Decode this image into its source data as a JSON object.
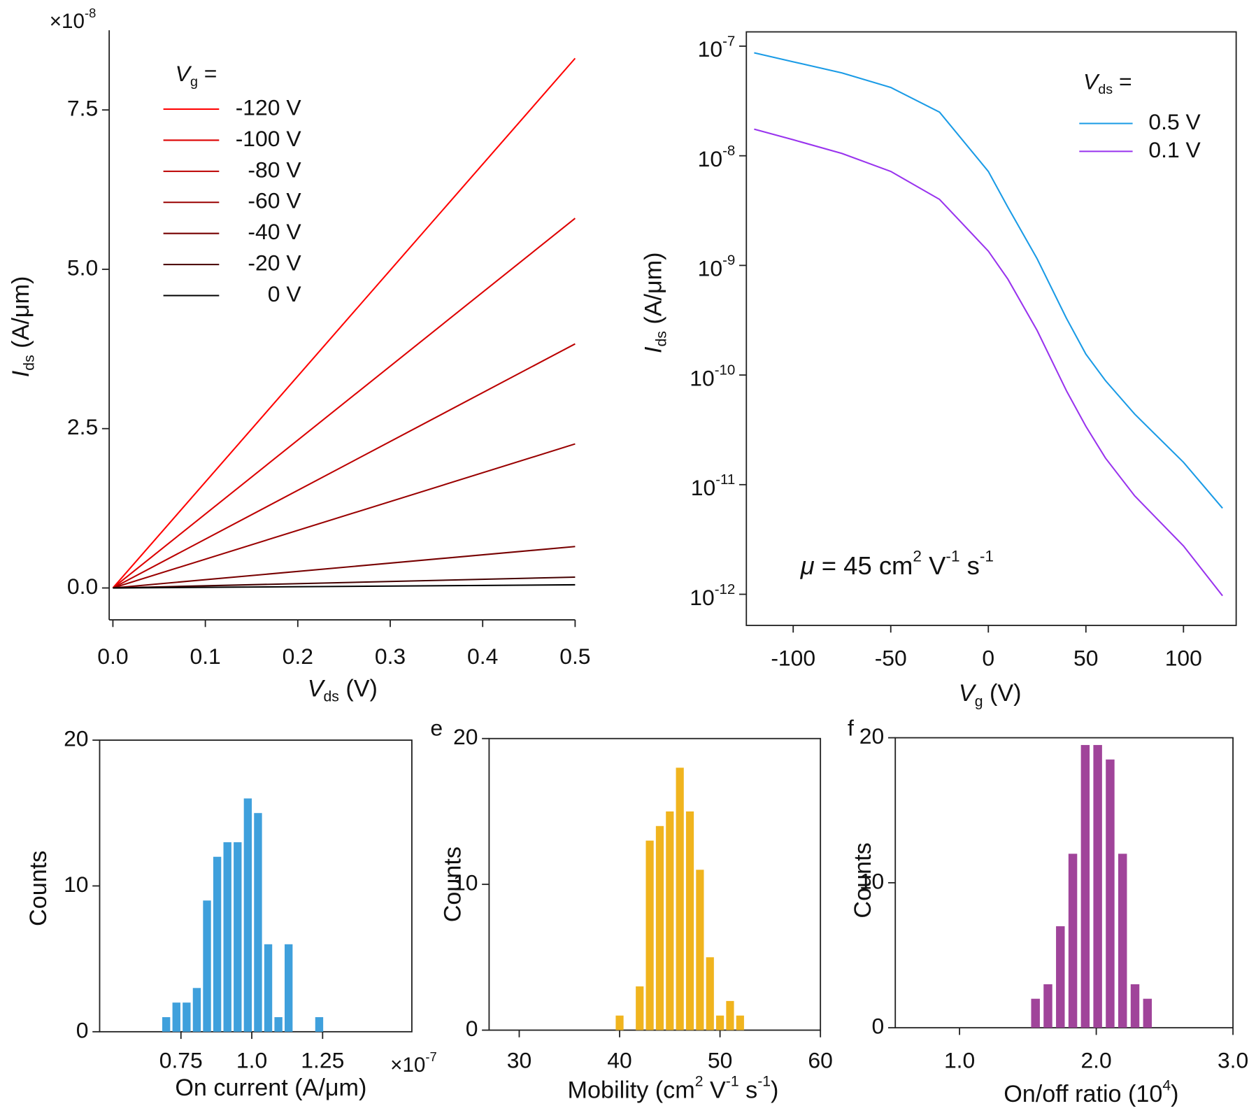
{
  "chart_data": [
    {
      "type": "line",
      "multiplier": [
        {
          "t": "×10"
        },
        {
          "t": "-8",
          "f": "sup"
        }
      ],
      "xlabel": [
        {
          "t": "V",
          "f": "i"
        },
        {
          "t": "ds",
          "f": "sub"
        },
        {
          "t": " (V)"
        }
      ],
      "ylabel": [
        {
          "t": "I",
          "f": "i"
        },
        {
          "t": "ds",
          "f": "sub"
        },
        {
          "t": " (A/μm)"
        }
      ],
      "legend_title": [
        {
          "t": "V",
          "f": "i"
        },
        {
          "t": "g",
          "f": "sub"
        },
        {
          "t": " ="
        }
      ],
      "x": [
        0,
        0.5
      ],
      "series": [
        {
          "name": "-120 V",
          "color": "#ff0000",
          "values": [
            0,
            8.31
          ]
        },
        {
          "name": "-100 V",
          "color": "#dd0000",
          "values": [
            0,
            5.8
          ]
        },
        {
          "name": "-80 V",
          "color": "#bb0000",
          "values": [
            0,
            3.83
          ]
        },
        {
          "name": "-60 V",
          "color": "#990000",
          "values": [
            0,
            2.26
          ]
        },
        {
          "name": "-40 V",
          "color": "#770000",
          "values": [
            0,
            0.65
          ]
        },
        {
          "name": "-20 V",
          "color": "#440000",
          "values": [
            0,
            0.17
          ]
        },
        {
          "name": "0 V",
          "color": "#000000",
          "values": [
            0,
            0.05
          ]
        }
      ],
      "xlim": [
        -0.004,
        0.5
      ],
      "ylim": [
        -0.5,
        8.75
      ],
      "xticks": [
        {
          "value": 0,
          "label": "0.0"
        },
        0.1,
        0.2,
        0.3,
        0.4,
        0.5
      ],
      "yticks": [
        {
          "value": 0,
          "label": "0.0"
        },
        2.5,
        {
          "value": 5,
          "label": "5.0"
        },
        7.5
      ],
      "box": false
    },
    {
      "type": "line",
      "log_y": true,
      "xlabel": [
        {
          "t": "V",
          "f": "i"
        },
        {
          "t": "g",
          "f": "sub"
        },
        {
          "t": " (V)"
        }
      ],
      "ylabel": [
        {
          "t": "I",
          "f": "i"
        },
        {
          "t": "ds",
          "f": "sub"
        },
        {
          "t": "  (A/μm)"
        }
      ],
      "legend_title": [
        {
          "t": "V",
          "f": "i"
        },
        {
          "t": "ds",
          "f": "sub"
        },
        {
          "t": " ="
        }
      ],
      "annotation": [
        {
          "t": "μ",
          "f": "i"
        },
        {
          "t": " = 45 cm"
        },
        {
          "t": "2",
          "f": "sup"
        },
        {
          "t": " V"
        },
        {
          "t": "-1",
          "f": "sup"
        },
        {
          "t": " s"
        },
        {
          "t": "-1",
          "f": "sup"
        }
      ],
      "x": [
        -120,
        -100,
        -75,
        -50,
        -25,
        0,
        10,
        25,
        40,
        50,
        60,
        75,
        100,
        120
      ],
      "series": [
        {
          "name": "0.5 V",
          "color": "#1a9be6",
          "values": [
            8.7e-08,
            7.2e-08,
            5.7e-08,
            4.2e-08,
            2.5e-08,
            7.2e-09,
            3.4e-09,
            1.15e-09,
            3.3e-10,
            1.55e-10,
            8.9e-11,
            4.4e-11,
            1.6e-11,
            6.1e-12
          ]
        },
        {
          "name": "0.1 V",
          "color": "#9933ee",
          "values": [
            1.75e-08,
            1.4e-08,
            1.05e-08,
            7.2e-09,
            4e-09,
            1.35e-09,
            7.5e-10,
            2.55e-10,
            7.2e-11,
            3.4e-11,
            1.75e-11,
            7.9e-12,
            2.76e-12,
            9.7e-13
          ]
        }
      ],
      "xlim": [
        -124,
        127
      ],
      "ylim": [
        5.2e-13,
        1.35e-07
      ],
      "xticks": [
        -100,
        -50,
        0,
        50,
        100
      ],
      "yticks": [
        {
          "value": 1e-07,
          "label": "10",
          "exp": "-7"
        },
        {
          "value": 1e-08,
          "label": "10",
          "exp": "-8"
        },
        {
          "value": 1e-09,
          "label": "10",
          "exp": "-9"
        },
        {
          "value": 1e-10,
          "label": "10",
          "exp": "-10"
        },
        {
          "value": 1e-11,
          "label": "10",
          "exp": "-11"
        },
        {
          "value": 1e-12,
          "label": "10",
          "exp": "-12"
        }
      ],
      "box": true
    },
    {
      "type": "histogram",
      "color": "#3fa0dc",
      "multiplier": [
        {
          "t": "×10"
        },
        {
          "t": "-7",
          "f": "sup"
        }
      ],
      "xlabel": [
        {
          "t": "On current (A/μm)"
        }
      ],
      "ylabel": [
        {
          "t": "Counts"
        }
      ],
      "bins": [
        0.68,
        0.716,
        0.752,
        0.788,
        0.824,
        0.86,
        0.896,
        0.932,
        0.968,
        1.004,
        1.04,
        1.076,
        1.112,
        1.148,
        1.184,
        1.22,
        1.256
      ],
      "values": [
        1,
        2,
        2,
        3,
        9,
        12,
        13,
        13,
        16,
        15,
        6,
        1,
        6,
        0,
        0,
        1
      ],
      "xlim": [
        0.463,
        1.565
      ],
      "ylim": [
        0,
        20
      ],
      "xticks": [
        0.75,
        {
          "value": 1,
          "label": "1.0"
        },
        1.25
      ],
      "yticks": [
        0,
        10,
        20
      ],
      "box": true
    },
    {
      "type": "histogram",
      "color": "#f0b41e",
      "panel": "e",
      "xlabel": [
        {
          "t": "Mobility (cm"
        },
        {
          "t": "2",
          "f": "sup"
        },
        {
          "t": " V"
        },
        {
          "t": "-1",
          "f": "sup"
        },
        {
          "t": " s"
        },
        {
          "t": "-1",
          "f": "sup"
        },
        {
          "t": ")"
        }
      ],
      "ylabel": [
        {
          "t": "Counts"
        }
      ],
      "bins": [
        39.5,
        40.5,
        41.5,
        42.5,
        43.5,
        44.5,
        45.5,
        46.5,
        47.5,
        48.5,
        49.5,
        50.5,
        51.5,
        52.5
      ],
      "values": [
        1,
        0,
        3,
        13,
        14,
        15,
        18,
        15,
        11,
        5,
        1,
        2,
        1
      ],
      "xlim": [
        27,
        60
      ],
      "ylim": [
        0,
        20
      ],
      "xticks": [
        30,
        40,
        50,
        60
      ],
      "yticks": [
        0,
        10,
        20
      ],
      "box": true
    },
    {
      "type": "histogram",
      "color": "#a0449a",
      "panel": "f",
      "xlabel": [
        {
          "t": "On/off ratio (10"
        },
        {
          "t": "4",
          "f": "sup"
        },
        {
          "t": ")"
        }
      ],
      "ylabel": [
        {
          "t": "Counts"
        }
      ],
      "bins": [
        1.51,
        1.601,
        1.692,
        1.783,
        1.874,
        1.965,
        2.056,
        2.147,
        2.238,
        2.329,
        2.42
      ],
      "values": [
        2,
        3,
        7,
        12,
        19.5,
        19.5,
        18.5,
        12,
        3,
        2
      ],
      "xlim": [
        0.53,
        3.0
      ],
      "ylim": [
        0,
        20
      ],
      "xticks": [
        {
          "value": 1,
          "label": "1.0"
        },
        {
          "value": 2,
          "label": "2.0"
        },
        {
          "value": 3,
          "label": "3.0"
        }
      ],
      "yticks": [
        0,
        10,
        20
      ],
      "box": true
    }
  ]
}
